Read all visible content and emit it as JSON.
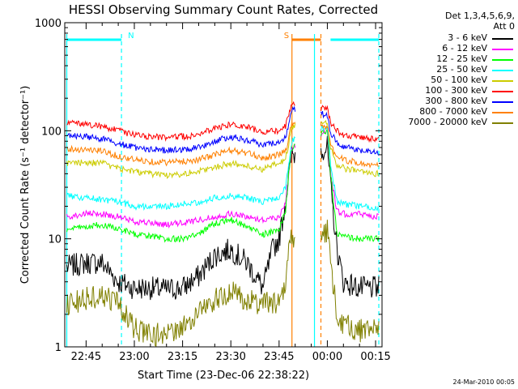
{
  "chart_data": {
    "type": "line",
    "title": "HESSI Observing Summary Count Rates, Corrected",
    "xlabel": "Start Time (23-Dec-06 22:38:22)",
    "ylabel": "Corrected Count Rate (s⁻¹ detector⁻¹)",
    "footer": "24-Mar-2010 00:05",
    "y_scale": "log",
    "ylim": [
      1,
      1000
    ],
    "y_ticks": [
      {
        "value": 1,
        "label": "1"
      },
      {
        "value": 10,
        "label": "10"
      },
      {
        "value": 100,
        "label": "100"
      },
      {
        "value": 1000,
        "label": "1000"
      }
    ],
    "xlim": [
      "22:38:22",
      "00:17:00"
    ],
    "x_ticks": [
      {
        "t": "22:45",
        "label": "22:45"
      },
      {
        "t": "23:00",
        "label": "23:00"
      },
      {
        "t": "23:15",
        "label": "23:15"
      },
      {
        "t": "23:30",
        "label": "23:30"
      },
      {
        "t": "23:45",
        "label": "23:45"
      },
      {
        "t": "00:00",
        "label": "00:00"
      },
      {
        "t": "00:15",
        "label": "00:15"
      }
    ],
    "legend": {
      "placement": "top-right, outside plot",
      "header": [
        "Det 1,3,4,5,6,9,",
        "Att 0"
      ]
    },
    "gap": [
      "23:50",
      "23:58"
    ],
    "series": [
      {
        "name": "3 - 6 keV",
        "color": "#000000",
        "points": [
          [
            "22:39",
            5.5
          ],
          [
            "22:45",
            6
          ],
          [
            "22:50",
            6
          ],
          [
            "22:55",
            4
          ],
          [
            "23:00",
            3.5
          ],
          [
            "23:05",
            3.5
          ],
          [
            "23:10",
            3.4
          ],
          [
            "23:15",
            3.5
          ],
          [
            "23:20",
            4.5
          ],
          [
            "23:25",
            7
          ],
          [
            "23:30",
            8
          ],
          [
            "23:35",
            6
          ],
          [
            "23:40",
            3.5
          ],
          [
            "23:43",
            8
          ],
          [
            "23:45",
            10
          ],
          [
            "23:47",
            22
          ],
          [
            "23:48",
            40
          ],
          [
            "23:49",
            60
          ],
          [
            "00:00",
            70
          ],
          [
            "00:01",
            30
          ],
          [
            "00:03",
            8
          ],
          [
            "00:05",
            4
          ],
          [
            "00:10",
            3.5
          ],
          [
            "00:16",
            3.5
          ]
        ]
      },
      {
        "name": "6 - 12 keV",
        "color": "#ff00ff",
        "points": [
          [
            "22:39",
            16
          ],
          [
            "22:45",
            17
          ],
          [
            "22:50",
            17
          ],
          [
            "22:55",
            16
          ],
          [
            "23:00",
            14.5
          ],
          [
            "23:05",
            14
          ],
          [
            "23:10",
            13.5
          ],
          [
            "23:15",
            14
          ],
          [
            "23:20",
            15
          ],
          [
            "23:25",
            16
          ],
          [
            "23:30",
            17
          ],
          [
            "23:35",
            16
          ],
          [
            "23:40",
            15
          ],
          [
            "23:45",
            16
          ],
          [
            "23:47",
            22
          ],
          [
            "23:48",
            40
          ],
          [
            "23:49",
            70
          ],
          [
            "00:00",
            100
          ],
          [
            "00:01",
            40
          ],
          [
            "00:03",
            18
          ],
          [
            "00:05",
            17
          ],
          [
            "00:10",
            17
          ],
          [
            "00:16",
            16
          ]
        ]
      },
      {
        "name": "12 - 25 keV",
        "color": "#00ff00",
        "points": [
          [
            "22:39",
            12
          ],
          [
            "22:45",
            13
          ],
          [
            "22:50",
            13.5
          ],
          [
            "22:55",
            12.5
          ],
          [
            "23:00",
            11
          ],
          [
            "23:05",
            10.5
          ],
          [
            "23:10",
            10
          ],
          [
            "23:15",
            10
          ],
          [
            "23:20",
            11
          ],
          [
            "23:25",
            14
          ],
          [
            "23:30",
            15
          ],
          [
            "23:35",
            13
          ],
          [
            "23:40",
            11
          ],
          [
            "23:45",
            12
          ],
          [
            "23:47",
            18
          ],
          [
            "23:48",
            40
          ],
          [
            "23:49",
            70
          ],
          [
            "00:00",
            100
          ],
          [
            "00:01",
            40
          ],
          [
            "00:03",
            11
          ],
          [
            "00:05",
            10.5
          ],
          [
            "00:10",
            10
          ],
          [
            "00:16",
            10
          ]
        ]
      },
      {
        "name": "25 - 50 keV",
        "color": "#00ffff",
        "points": [
          [
            "22:39",
            25
          ],
          [
            "22:45",
            24
          ],
          [
            "22:50",
            23
          ],
          [
            "22:55",
            22
          ],
          [
            "23:00",
            20
          ],
          [
            "23:05",
            20
          ],
          [
            "23:10",
            20
          ],
          [
            "23:15",
            21
          ],
          [
            "23:20",
            22
          ],
          [
            "23:25",
            24
          ],
          [
            "23:30",
            25
          ],
          [
            "23:35",
            24
          ],
          [
            "23:40",
            22
          ],
          [
            "23:45",
            24
          ],
          [
            "23:47",
            30
          ],
          [
            "23:48",
            50
          ],
          [
            "23:49",
            80
          ],
          [
            "00:00",
            110
          ],
          [
            "00:01",
            50
          ],
          [
            "00:03",
            22
          ],
          [
            "00:05",
            21
          ],
          [
            "00:10",
            20
          ],
          [
            "00:16",
            19
          ]
        ]
      },
      {
        "name": "50 - 100 keV",
        "color": "#cccc00",
        "points": [
          [
            "22:39",
            50
          ],
          [
            "22:45",
            51
          ],
          [
            "22:50",
            50
          ],
          [
            "22:55",
            45
          ],
          [
            "23:00",
            42
          ],
          [
            "23:05",
            40
          ],
          [
            "23:10",
            39
          ],
          [
            "23:15",
            40
          ],
          [
            "23:20",
            42
          ],
          [
            "23:25",
            46
          ],
          [
            "23:30",
            50
          ],
          [
            "23:35",
            47
          ],
          [
            "23:40",
            44
          ],
          [
            "23:45",
            50
          ],
          [
            "23:47",
            55
          ],
          [
            "23:48",
            75
          ],
          [
            "23:49",
            110
          ],
          [
            "00:00",
            120
          ],
          [
            "00:01",
            70
          ],
          [
            "00:03",
            48
          ],
          [
            "00:05",
            45
          ],
          [
            "00:10",
            42
          ],
          [
            "00:16",
            40
          ]
        ]
      },
      {
        "name": "100 - 300 keV",
        "color": "#ff0000",
        "points": [
          [
            "22:39",
            118
          ],
          [
            "22:45",
            115
          ],
          [
            "22:50",
            110
          ],
          [
            "22:55",
            100
          ],
          [
            "23:00",
            92
          ],
          [
            "23:05",
            88
          ],
          [
            "23:10",
            87
          ],
          [
            "23:15",
            88
          ],
          [
            "23:20",
            92
          ],
          [
            "23:25",
            105
          ],
          [
            "23:30",
            115
          ],
          [
            "23:35",
            108
          ],
          [
            "23:40",
            98
          ],
          [
            "23:45",
            100
          ],
          [
            "23:47",
            110
          ],
          [
            "23:48",
            140
          ],
          [
            "23:49",
            180
          ],
          [
            "00:00",
            160
          ],
          [
            "00:01",
            120
          ],
          [
            "00:03",
            100
          ],
          [
            "00:05",
            92
          ],
          [
            "00:10",
            87
          ],
          [
            "00:16",
            84
          ]
        ]
      },
      {
        "name": "300 - 800 keV",
        "color": "#0000ff",
        "points": [
          [
            "22:39",
            90
          ],
          [
            "22:45",
            88
          ],
          [
            "22:50",
            84
          ],
          [
            "22:55",
            76
          ],
          [
            "23:00",
            70
          ],
          [
            "23:05",
            67
          ],
          [
            "23:10",
            66
          ],
          [
            "23:15",
            67
          ],
          [
            "23:20",
            70
          ],
          [
            "23:25",
            80
          ],
          [
            "23:30",
            88
          ],
          [
            "23:35",
            82
          ],
          [
            "23:40",
            74
          ],
          [
            "23:45",
            78
          ],
          [
            "23:47",
            88
          ],
          [
            "23:48",
            115
          ],
          [
            "23:49",
            160
          ],
          [
            "00:00",
            140
          ],
          [
            "00:01",
            95
          ],
          [
            "00:03",
            78
          ],
          [
            "00:05",
            72
          ],
          [
            "00:10",
            66
          ],
          [
            "00:16",
            62
          ]
        ]
      },
      {
        "name": "800 - 7000 keV",
        "color": "#ff8000",
        "points": [
          [
            "22:39",
            68
          ],
          [
            "22:45",
            67
          ],
          [
            "22:50",
            65
          ],
          [
            "22:55",
            58
          ],
          [
            "23:00",
            54
          ],
          [
            "23:05",
            52
          ],
          [
            "23:10",
            51
          ],
          [
            "23:15",
            52
          ],
          [
            "23:20",
            54
          ],
          [
            "23:25",
            60
          ],
          [
            "23:30",
            66
          ],
          [
            "23:35",
            62
          ],
          [
            "23:40",
            56
          ],
          [
            "23:45",
            60
          ],
          [
            "23:47",
            66
          ],
          [
            "23:48",
            85
          ],
          [
            "23:49",
            120
          ],
          [
            "00:00",
            110
          ],
          [
            "00:01",
            72
          ],
          [
            "00:03",
            58
          ],
          [
            "00:05",
            54
          ],
          [
            "00:10",
            50
          ],
          [
            "00:16",
            47
          ]
        ]
      },
      {
        "name": "7000 - 20000 keV",
        "color": "#808000",
        "points": [
          [
            "22:39",
            2.5
          ],
          [
            "22:45",
            2.8
          ],
          [
            "22:50",
            3
          ],
          [
            "22:55",
            2.5
          ],
          [
            "23:00",
            1.5
          ],
          [
            "23:05",
            1.3
          ],
          [
            "23:10",
            1.3
          ],
          [
            "23:15",
            1.5
          ],
          [
            "23:20",
            2.2
          ],
          [
            "23:25",
            2.7
          ],
          [
            "23:30",
            3.2
          ],
          [
            "23:35",
            2.7
          ],
          [
            "23:40",
            2.5
          ],
          [
            "23:45",
            2.6
          ],
          [
            "23:47",
            4
          ],
          [
            "23:48",
            8
          ],
          [
            "23:49",
            10
          ],
          [
            "00:00",
            12
          ],
          [
            "00:01",
            6
          ],
          [
            "00:03",
            2
          ],
          [
            "00:05",
            1.6
          ],
          [
            "00:10",
            1.4
          ],
          [
            "00:16",
            1.6
          ]
        ]
      }
    ],
    "markers": [
      {
        "label": "N",
        "color": "#00ffff",
        "bar": [
          "22:39",
          "22:56"
        ],
        "lines": [
          {
            "t": "22:39",
            "style": "solid"
          },
          {
            "t": "22:56",
            "style": "dashed"
          }
        ]
      },
      {
        "label": "S",
        "color": "#ff8000",
        "bar": [
          "23:49",
          "23:58"
        ],
        "lines": [
          {
            "t": "23:49",
            "style": "solid"
          },
          {
            "t": "23:58",
            "style": "dashed"
          }
        ]
      },
      {
        "label": "",
        "color": "#00ffff",
        "bar": [
          "00:01",
          "00:16"
        ],
        "lines": [
          {
            "t": "23:56",
            "style": "solid"
          },
          {
            "t": "00:16",
            "style": "dashed"
          }
        ]
      }
    ]
  }
}
